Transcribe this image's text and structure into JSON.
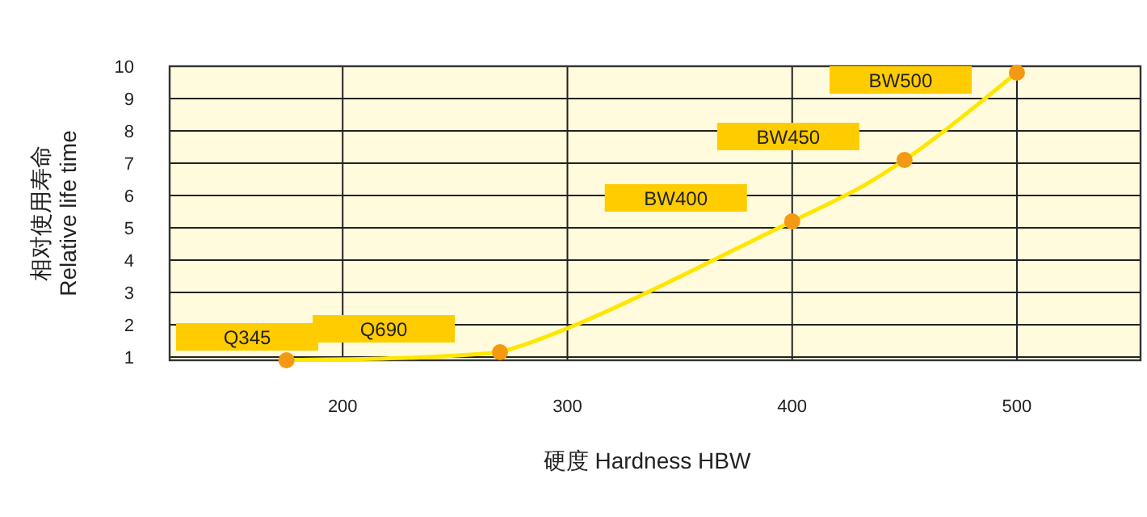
{
  "chart_data": {
    "type": "line",
    "ylabel": "相对使用寿命\nRelative life time",
    "xlabel": "硬度  Hardness HBW",
    "x": [
      175,
      270,
      400,
      450,
      500
    ],
    "series": [
      {
        "color": "#ffe600",
        "values": [
          0.9,
          1.15,
          5.2,
          7.1,
          9.8
        ]
      }
    ],
    "marker": "circle",
    "line_style": "solid",
    "grid": true,
    "xlim": [
      123,
      555
    ],
    "xticks": [
      200,
      300,
      400,
      500
    ],
    "ylim": [
      0.9,
      10
    ],
    "yticks": [
      1,
      2,
      3,
      4,
      5,
      6,
      7,
      8,
      9,
      10
    ],
    "annotations": [
      "Q345",
      "Q690",
      "BW400",
      "BW450",
      "BW500"
    ]
  }
}
